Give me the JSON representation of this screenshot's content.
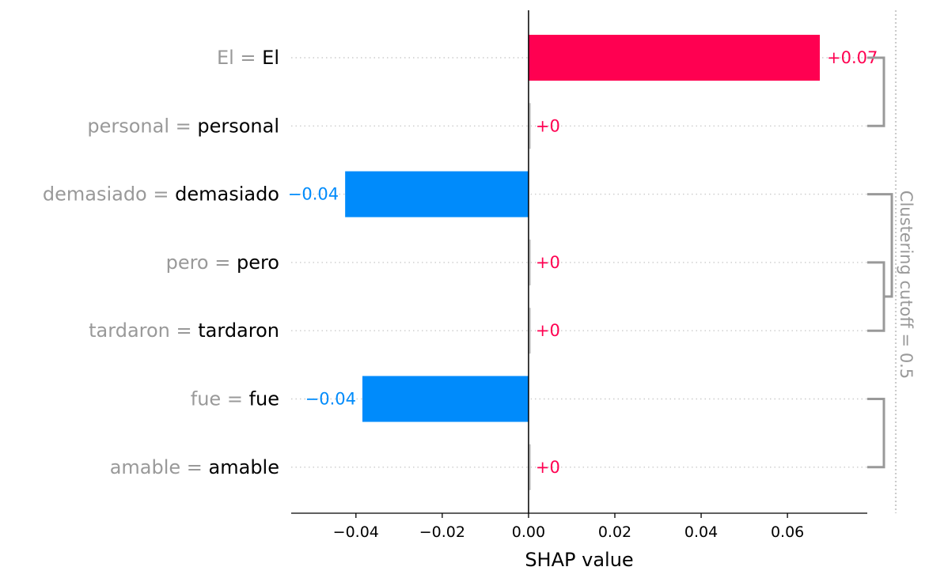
{
  "chart_data": {
    "type": "bar",
    "orientation": "horizontal",
    "xlabel": "SHAP value",
    "xlim": [
      -0.055,
      0.0785
    ],
    "x_ticks": [
      -0.04,
      -0.02,
      0.0,
      0.02,
      0.04,
      0.06
    ],
    "x_tick_labels": [
      "−0.04",
      "−0.02",
      "0.00",
      "0.02",
      "0.04",
      "0.06"
    ],
    "grid": false,
    "features": [
      {
        "name": "El",
        "value_text": "El",
        "shap": 0.0675,
        "label": "+0.07"
      },
      {
        "name": "personal",
        "value_text": "personal",
        "shap": 0.0,
        "label": "+0"
      },
      {
        "name": "demasiado",
        "value_text": "demasiado",
        "shap": -0.0425,
        "label": "−0.04"
      },
      {
        "name": "pero",
        "value_text": "pero",
        "shap": 0.0,
        "label": "+0"
      },
      {
        "name": "tardaron",
        "value_text": "tardaron",
        "shap": 0.0,
        "label": "+0"
      },
      {
        "name": "fue",
        "value_text": "fue",
        "shap": -0.0385,
        "label": "−0.04"
      },
      {
        "name": "amable",
        "value_text": "amable",
        "shap": 0.0,
        "label": "+0"
      }
    ],
    "clustering": [
      {
        "rows": [
          0,
          1
        ],
        "level": 1
      },
      {
        "rows": [
          3,
          4
        ],
        "level": 1
      },
      {
        "rows": [
          5,
          6
        ],
        "level": 1
      },
      {
        "rows": [
          2,
          3.5
        ],
        "level": 2
      }
    ],
    "cutoff_label": "Clustering cutoff = 0.5",
    "colors": {
      "positive": "#ff0051",
      "negative": "#008bfb",
      "feature_name": "#999999",
      "feature_value": "#000000",
      "dendrogram": "#999999",
      "zero_bar": "#cccccc"
    }
  }
}
